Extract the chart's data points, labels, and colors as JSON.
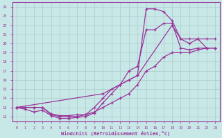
{
  "xlabel": "Windchill (Refroidissement éolien,°C)",
  "bg_color": "#c8e8e8",
  "grid_color": "#b0d0d0",
  "line_color": "#993399",
  "axis_color": "#993399",
  "xlim": [
    -0.5,
    23.5
  ],
  "ylim": [
    11.5,
    24.5
  ],
  "xticks": [
    0,
    1,
    2,
    3,
    4,
    5,
    6,
    7,
    8,
    9,
    10,
    11,
    12,
    13,
    14,
    15,
    16,
    17,
    18,
    19,
    20,
    21,
    22,
    23
  ],
  "yticks": [
    12,
    13,
    14,
    15,
    16,
    17,
    18,
    19,
    20,
    21,
    22,
    23,
    24
  ],
  "line1_x": [
    0,
    1,
    2,
    3,
    4,
    5,
    6,
    7,
    8,
    9,
    10,
    11,
    12,
    13,
    14,
    15,
    16,
    17,
    18,
    19,
    20,
    21,
    22,
    23
  ],
  "line1_y": [
    13.0,
    13.0,
    13.0,
    13.0,
    12.3,
    12.1,
    12.1,
    12.2,
    12.2,
    12.5,
    13.0,
    13.5,
    14.0,
    14.5,
    15.5,
    17.0,
    17.5,
    18.5,
    19.0,
    19.0,
    19.0,
    19.3,
    19.5,
    19.5
  ],
  "line2_x": [
    0,
    1,
    2,
    3,
    4,
    5,
    6,
    7,
    8,
    9,
    10,
    11,
    12,
    13,
    14,
    15,
    16,
    17,
    18,
    19,
    20,
    21,
    22,
    23
  ],
  "line2_y": [
    13.0,
    12.8,
    12.5,
    12.7,
    12.1,
    11.8,
    11.8,
    11.9,
    12.0,
    12.4,
    13.5,
    14.5,
    15.5,
    17.0,
    17.5,
    21.5,
    21.5,
    22.2,
    22.2,
    19.5,
    19.3,
    19.5,
    19.5,
    19.5
  ],
  "line3_x": [
    0,
    1,
    2,
    3,
    4,
    5,
    6,
    7,
    8,
    9,
    10,
    11,
    12,
    13,
    14,
    15,
    16,
    17,
    18,
    19,
    20,
    21,
    22,
    23
  ],
  "line3_y": [
    13.0,
    13.0,
    13.0,
    13.0,
    12.2,
    12.0,
    12.0,
    12.0,
    12.2,
    13.0,
    14.0,
    15.0,
    15.5,
    16.0,
    16.5,
    23.8,
    23.8,
    23.5,
    22.5,
    20.5,
    20.0,
    20.5,
    20.5,
    20.5
  ],
  "line4_x": [
    0,
    10,
    14,
    18,
    19,
    20,
    21,
    22,
    23
  ],
  "line4_y": [
    13.0,
    14.5,
    16.5,
    22.0,
    20.5,
    20.5,
    20.5,
    19.5,
    19.5
  ]
}
